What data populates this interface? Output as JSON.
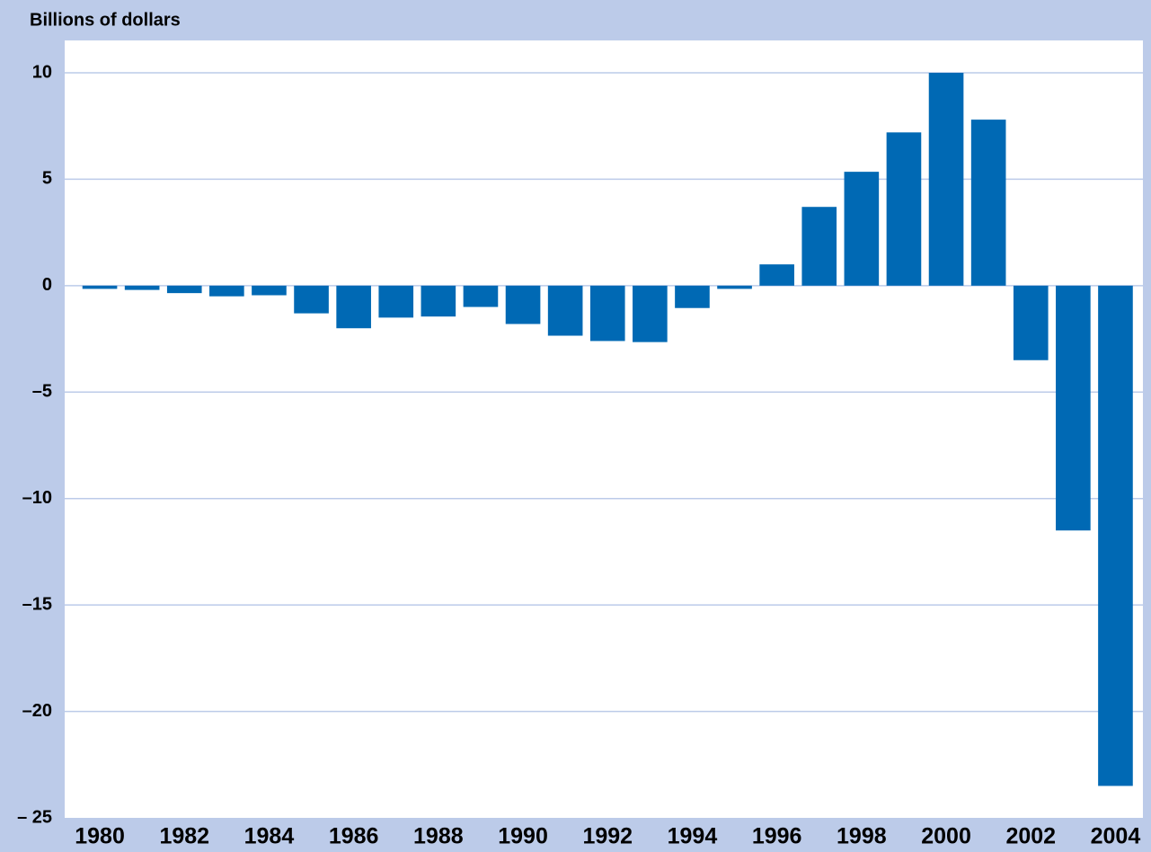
{
  "chart_data": {
    "type": "bar",
    "title": "Billions of dollars",
    "categories": [
      "1980",
      null,
      "1982",
      null,
      "1984",
      null,
      "1986",
      null,
      "1988",
      null,
      "1990",
      null,
      "1992",
      null,
      "1994",
      null,
      "1996",
      null,
      "1998",
      null,
      "2000",
      null,
      "2002",
      null,
      "2004"
    ],
    "values": [
      -0.15,
      -0.2,
      -0.35,
      -0.5,
      -0.45,
      -1.3,
      -2.0,
      -1.5,
      -1.45,
      -1.0,
      -1.8,
      -2.35,
      -2.6,
      -2.65,
      -1.05,
      -0.15,
      1.0,
      3.7,
      5.35,
      7.2,
      10.0,
      7.8,
      -3.5,
      -11.5,
      -23.5
    ],
    "color": "#0069b4",
    "ylim": [
      -25,
      10
    ],
    "yticks": [
      {
        "value": -25,
        "label": "– 25"
      },
      {
        "value": -20,
        "label": "–20"
      },
      {
        "value": -15,
        "label": "–15"
      },
      {
        "value": -10,
        "label": "–10"
      },
      {
        "value": -5,
        "label": "–5"
      },
      0,
      5,
      10
    ],
    "grid": true
  }
}
